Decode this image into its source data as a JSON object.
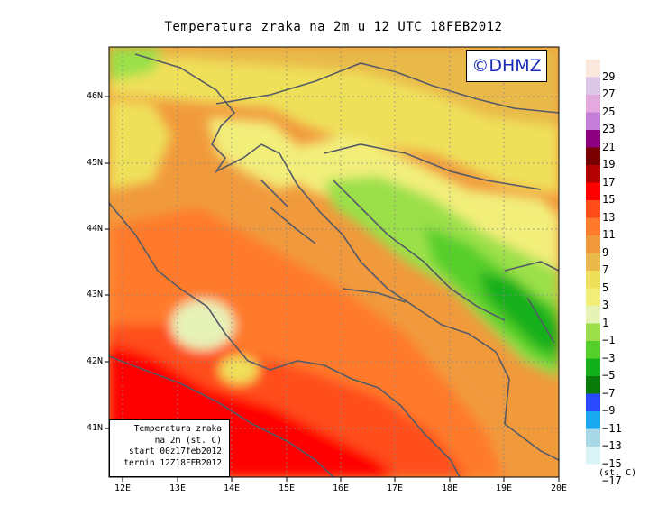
{
  "title": "Temperatura zraka na 2m u 12 UTC 18FEB2012",
  "logo": "©DHMZ",
  "info_box": {
    "lines": [
      "Temperatura zraka",
      "na 2m (st. C)",
      "start 00z17feb2012",
      "termin 12Z18FEB2012"
    ]
  },
  "lat_labels": [
    "46N",
    "45N",
    "44N",
    "43N",
    "42N",
    "41N"
  ],
  "lon_labels": [
    "12E",
    "13E",
    "14E",
    "15E",
    "16E",
    "17E",
    "18E",
    "19E",
    "20E"
  ],
  "legend": {
    "labels": [
      "29",
      "27",
      "25",
      "23",
      "21",
      "19",
      "17",
      "15",
      "13",
      "11",
      "9",
      "7",
      "5",
      "3",
      "1",
      "−1",
      "−3",
      "−5",
      "−7",
      "−9",
      "−11",
      "−13",
      "−15",
      "−17"
    ],
    "colors": [
      "#fbe8dc",
      "#dcc6e6",
      "#e4a9df",
      "#c47fd8",
      "#8c0080",
      "#7a0000",
      "#b30000",
      "#ff0000",
      "#ff4d1a",
      "#ff7a2a",
      "#f19a3c",
      "#e9b94a",
      "#efe05a",
      "#f2ee7a",
      "#e6f2b8",
      "#9be04a",
      "#56cf2a",
      "#12b01a",
      "#0a7a0a",
      "#2a48ff",
      "#18a8f0",
      "#a8d8e8",
      "#d8f4f4",
      "#ffffff"
    ],
    "unit": "(st. C)"
  }
}
